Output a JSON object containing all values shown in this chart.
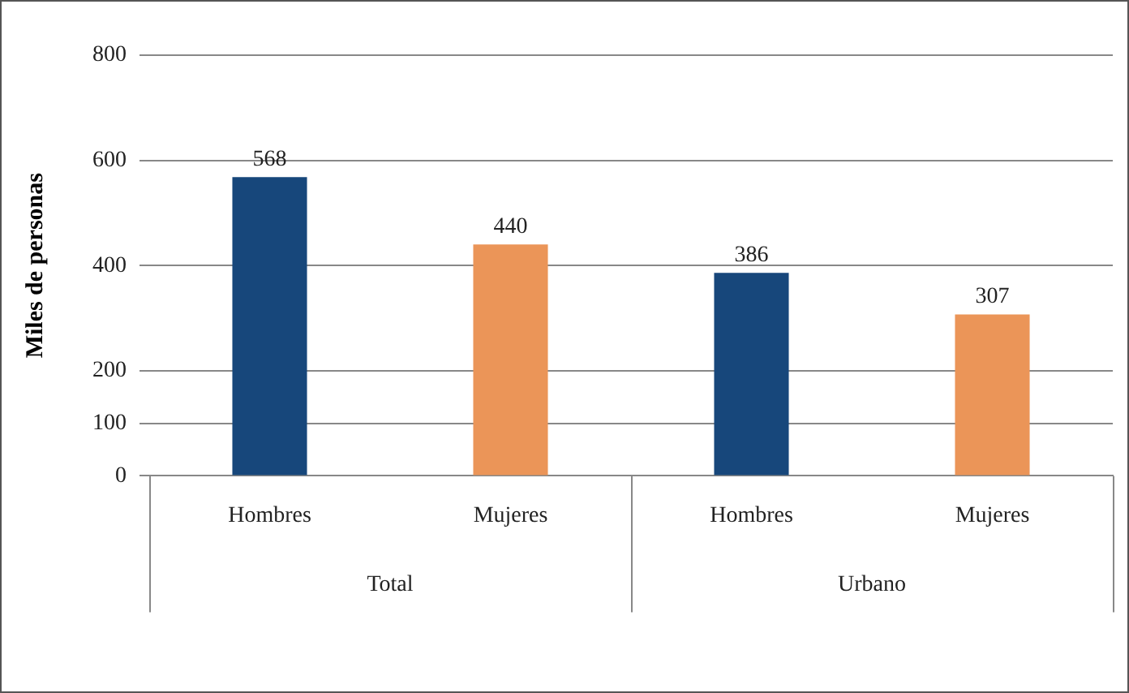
{
  "chart_data": {
    "type": "bar",
    "ylabel": "Miles de personas",
    "categories": [
      "Hombres",
      "Mujeres",
      "Hombres",
      "Mujeres"
    ],
    "values": [
      568,
      440,
      386,
      307
    ],
    "colors": [
      "#17477b",
      "#eb9558",
      "#17477b",
      "#eb9558"
    ],
    "data_labels": true,
    "ylim": [
      0,
      800
    ],
    "yticks": [
      0,
      100,
      200,
      400,
      600,
      800
    ],
    "grid": "y",
    "annotations": [
      "Total",
      "Urbano"
    ]
  }
}
